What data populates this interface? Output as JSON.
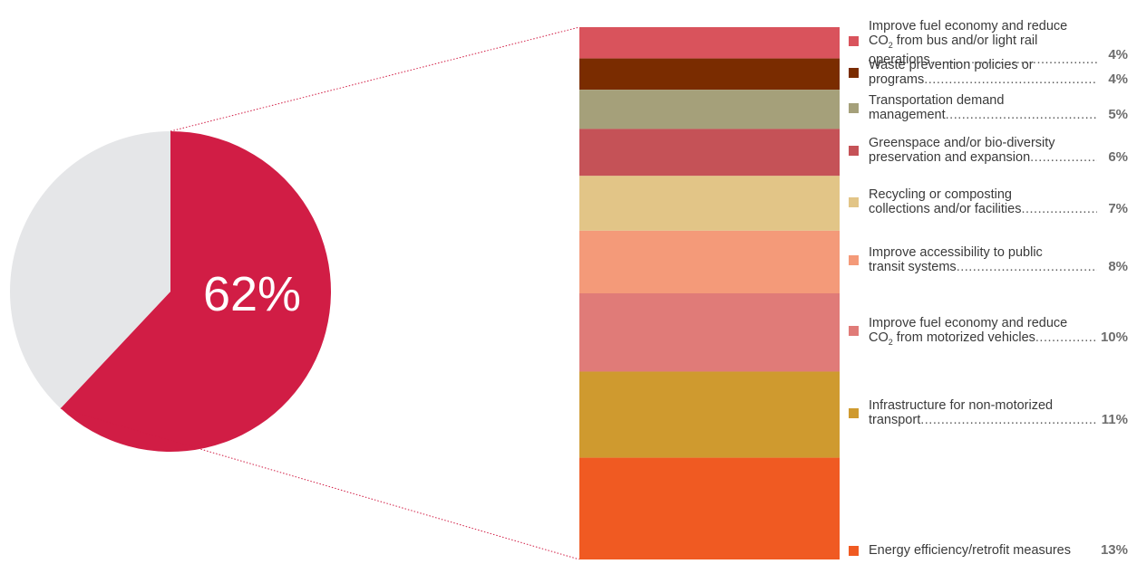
{
  "chart_data": {
    "type": "pie",
    "pie": {
      "slices": [
        {
          "label": "62%",
          "value": 62,
          "color": "#d11d45"
        },
        {
          "value": 38,
          "color": "#e5e6e8"
        }
      ]
    },
    "breakdown": {
      "type": "bar",
      "stacked": true,
      "items": [
        {
          "lines": [
            "Improve fuel economy and reduce",
            "CO|2| from bus and/or light rail",
            "operations"
          ],
          "value": 4,
          "pct": "4%",
          "color": "#d9535c"
        },
        {
          "lines": [
            "Waste prevention policies or",
            "programs"
          ],
          "value": 4,
          "pct": "4%",
          "color": "#7a2c00"
        },
        {
          "lines": [
            "Transportation demand",
            "management"
          ],
          "value": 5,
          "pct": "5%",
          "color": "#a5a07a"
        },
        {
          "lines": [
            "Greenspace and/or bio-diversity",
            "preservation and expansion"
          ],
          "value": 6,
          "pct": "6%",
          "color": "#c55257"
        },
        {
          "lines": [
            "Recycling or composting",
            "collections and/or facilities"
          ],
          "value": 7,
          "pct": "7%",
          "color": "#e2c587"
        },
        {
          "lines": [
            "Improve accessibility to public",
            "transit systems"
          ],
          "value": 8,
          "pct": "8%",
          "color": "#f49a79"
        },
        {
          "lines": [
            "Improve fuel economy and reduce",
            "CO|2| from motorized vehicles"
          ],
          "value": 10,
          "pct": "10%",
          "color": "#e07b78"
        },
        {
          "lines": [
            "Infrastructure for non-motorized",
            "transport"
          ],
          "value": 11,
          "pct": "11%",
          "color": "#cf9a2f"
        },
        {
          "lines": [
            "Energy efficiency/retrofit measures"
          ],
          "value": 13,
          "pct": "13%",
          "color": "#f05a22"
        }
      ]
    }
  }
}
